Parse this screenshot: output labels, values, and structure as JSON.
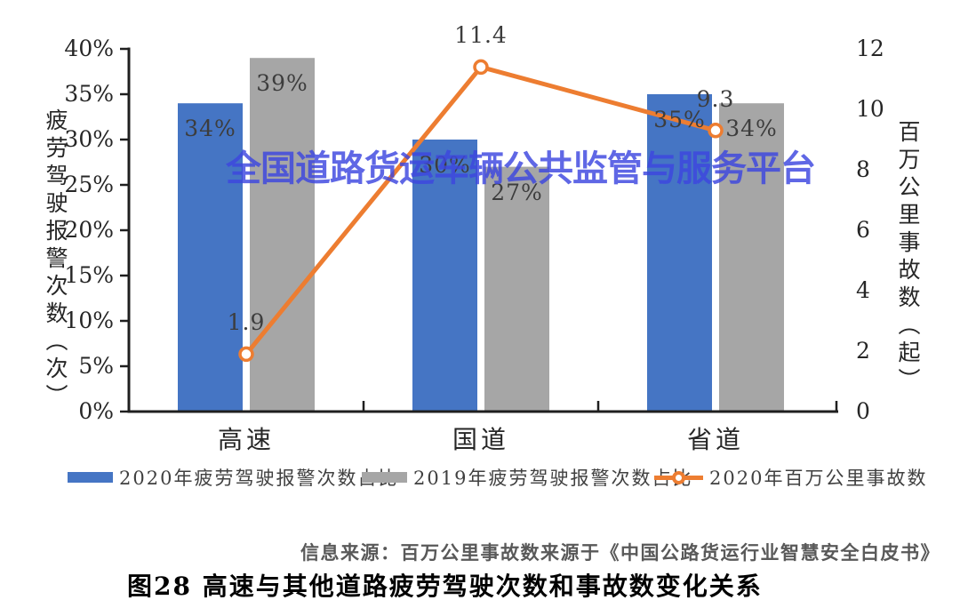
{
  "figure": {
    "watermark": "全国道路货运车辆公共监管与服务平台",
    "source_note": "信息来源：百万公里事故数来源于《中国公路货运行业智慧安全白皮书》",
    "caption": "图28 高速与其他道路疲劳驾驶次数和事故数变化关系"
  },
  "chart_data": {
    "type": "bar",
    "subtype": "grouped-bar-with-line-dual-axis",
    "categories": [
      "高速",
      "国道",
      "省道"
    ],
    "series": [
      {
        "name": "2020年疲劳驾驶报警次数占比",
        "type": "bar",
        "axis": "left",
        "color": "#4575c4",
        "values": [
          34,
          30,
          35
        ],
        "data_labels": [
          "34%",
          "30%",
          "35%"
        ]
      },
      {
        "name": "2019年疲劳驾驶报警次数占比",
        "type": "bar",
        "axis": "left",
        "color": "#a6a6a6",
        "values": [
          39,
          27,
          34
        ],
        "data_labels": [
          "39%",
          "27%",
          "34%"
        ]
      },
      {
        "name": "2020年百万公里事故数",
        "type": "line",
        "axis": "right",
        "color": "#ed7d31",
        "marker": "open-circle",
        "values": [
          1.9,
          11.4,
          9.3
        ],
        "data_labels": [
          "1.9",
          "11.4",
          "9.3"
        ]
      }
    ],
    "left_axis": {
      "title": "疲劳驾驶报警次数（次）",
      "min": 0,
      "max": 40,
      "tick_labels": [
        "40%",
        "35%",
        "30%",
        "25%",
        "20%",
        "15%",
        "10%",
        "5%",
        "0%"
      ]
    },
    "right_axis": {
      "title": "百万公里事故数（起）",
      "min": 0,
      "max": 12,
      "tick_labels": [
        "12",
        "10",
        "8",
        "6",
        "4",
        "2",
        "0"
      ]
    },
    "legend_position": "bottom",
    "grid": false,
    "colors": {
      "axis_line": "#1f1f1f",
      "data_label": "#3d3d3d",
      "watermark": "#3d46e0"
    }
  }
}
